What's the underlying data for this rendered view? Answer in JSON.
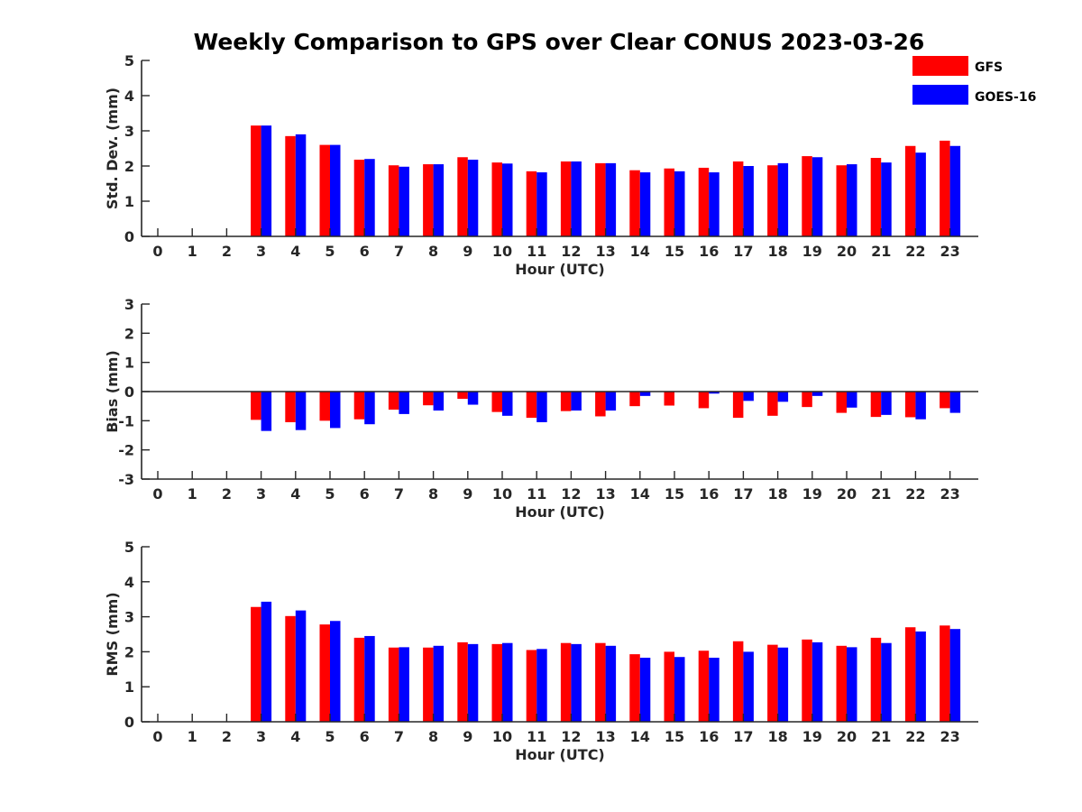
{
  "chart_data": {
    "type": "bar",
    "title": "Weekly Comparison to GPS over Clear CONUS 2023-03-26",
    "categories": [
      "0",
      "1",
      "2",
      "3",
      "4",
      "5",
      "6",
      "7",
      "8",
      "9",
      "10",
      "11",
      "12",
      "13",
      "14",
      "15",
      "16",
      "17",
      "18",
      "19",
      "20",
      "21",
      "22",
      "23"
    ],
    "legend": {
      "placement": "top-right",
      "entries": [
        {
          "name": "GFS",
          "color": "#ff0000"
        },
        {
          "name": "GOES-16",
          "color": "#0000ff"
        }
      ]
    },
    "panels": [
      {
        "ylabel": "Std. Dev. (mm)",
        "xlabel": "Hour (UTC)",
        "ylim": [
          0,
          5
        ],
        "yticks": [
          "0",
          "1",
          "2",
          "3",
          "4",
          "5"
        ],
        "series": [
          {
            "name": "GFS",
            "color": "#ff0000",
            "values": [
              null,
              null,
              null,
              3.15,
              2.85,
              2.6,
              2.18,
              2.02,
              2.05,
              2.25,
              2.1,
              1.85,
              2.13,
              2.08,
              1.88,
              1.93,
              1.95,
              2.13,
              2.02,
              2.28,
              2.02,
              2.23,
              2.57,
              2.72
            ]
          },
          {
            "name": "GOES-16",
            "color": "#0000ff",
            "values": [
              null,
              null,
              null,
              3.15,
              2.9,
              2.6,
              2.2,
              1.98,
              2.05,
              2.18,
              2.07,
              1.82,
              2.13,
              2.08,
              1.82,
              1.85,
              1.82,
              2.0,
              2.08,
              2.25,
              2.05,
              2.1,
              2.38,
              2.57
            ]
          }
        ]
      },
      {
        "ylabel": "Bias (mm)",
        "xlabel": "Hour (UTC)",
        "ylim": [
          -3,
          3
        ],
        "yticks": [
          "-3",
          "-2",
          "-1",
          "0",
          "1",
          "2",
          "3"
        ],
        "series": [
          {
            "name": "GFS",
            "color": "#ff0000",
            "values": [
              null,
              null,
              null,
              -0.97,
              -1.05,
              -1.0,
              -0.95,
              -0.62,
              -0.47,
              -0.25,
              -0.7,
              -0.9,
              -0.67,
              -0.85,
              -0.5,
              -0.48,
              -0.57,
              -0.9,
              -0.83,
              -0.53,
              -0.73,
              -0.87,
              -0.88,
              -0.57
            ]
          },
          {
            "name": "GOES-16",
            "color": "#0000ff",
            "values": [
              null,
              null,
              null,
              -1.35,
              -1.32,
              -1.25,
              -1.12,
              -0.77,
              -0.65,
              -0.45,
              -0.83,
              -1.05,
              -0.65,
              -0.65,
              -0.15,
              0.0,
              -0.07,
              -0.32,
              -0.35,
              -0.15,
              -0.55,
              -0.8,
              -0.95,
              -0.73
            ]
          }
        ]
      },
      {
        "ylabel": "RMS (mm)",
        "xlabel": "Hour (UTC)",
        "ylim": [
          0,
          5
        ],
        "yticks": [
          "0",
          "1",
          "2",
          "3",
          "4",
          "5"
        ],
        "series": [
          {
            "name": "GFS",
            "color": "#ff0000",
            "values": [
              null,
              null,
              null,
              3.28,
              3.02,
              2.78,
              2.4,
              2.12,
              2.12,
              2.27,
              2.22,
              2.05,
              2.25,
              2.25,
              1.93,
              2.0,
              2.03,
              2.3,
              2.2,
              2.35,
              2.17,
              2.4,
              2.7,
              2.75
            ]
          },
          {
            "name": "GOES-16",
            "color": "#0000ff",
            "values": [
              null,
              null,
              null,
              3.43,
              3.18,
              2.88,
              2.45,
              2.13,
              2.17,
              2.22,
              2.25,
              2.08,
              2.22,
              2.17,
              1.83,
              1.85,
              1.83,
              2.0,
              2.12,
              2.27,
              2.13,
              2.25,
              2.58,
              2.65
            ]
          }
        ]
      }
    ]
  }
}
